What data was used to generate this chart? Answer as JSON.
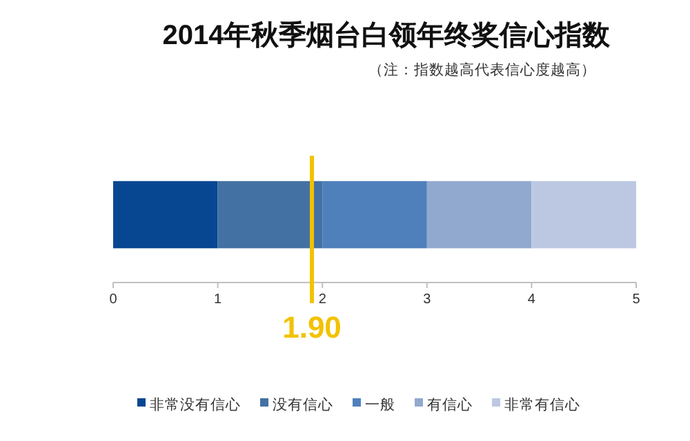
{
  "chart_data": {
    "type": "bar",
    "orientation": "horizontal",
    "stacked": true,
    "title": "2014年秋季烟台白领年终奖信心指数",
    "annotations": [
      "（注：指数越高代表信心度越高）"
    ],
    "categories": [
      null
    ],
    "series": [
      {
        "name": "非常没有信心",
        "color": "#074792",
        "values": [
          1
        ]
      },
      {
        "name": "没有信心",
        "color": "#4471a3",
        "values": [
          1
        ]
      },
      {
        "name": "一般",
        "color": "#4f80bb",
        "values": [
          1
        ]
      },
      {
        "name": "有信心",
        "color": "#92a9cf",
        "values": [
          1
        ]
      },
      {
        "name": "非常有信心",
        "color": "#bcc8e2",
        "values": [
          1
        ]
      }
    ],
    "xlim": [
      0,
      5
    ],
    "xticks": [
      0,
      1,
      2,
      3,
      4,
      5
    ],
    "ref_lines": [
      {
        "axis": "x",
        "value": 1.9,
        "label": "1.90",
        "color": "#f2c200"
      }
    ],
    "grid": false,
    "legend": "bottom"
  }
}
